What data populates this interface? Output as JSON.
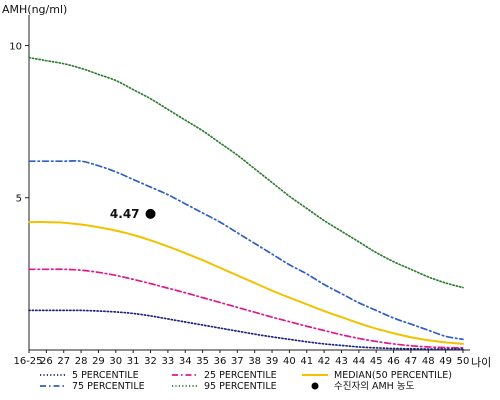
{
  "chart_data": {
    "type": "line",
    "ylabel": "AMH(ng/ml)",
    "xlabel": "나이",
    "ylim": [
      0,
      11
    ],
    "y_ticks": [
      {
        "value": 10,
        "label": "10"
      },
      {
        "value": 5,
        "label": "5"
      }
    ],
    "x": [
      "16-25",
      "26",
      "27",
      "28",
      "29",
      "30",
      "31",
      "32",
      "33",
      "34",
      "35",
      "36",
      "37",
      "38",
      "39",
      "40",
      "41",
      "42",
      "43",
      "44",
      "45",
      "46",
      "47",
      "48",
      "49",
      "50"
    ],
    "series": [
      {
        "name": "95 PERCENTILE",
        "color": "#2e7d32",
        "dash": "dotted",
        "values": [
          9.6,
          9.5,
          9.4,
          9.25,
          9.05,
          8.85,
          8.55,
          8.25,
          7.9,
          7.55,
          7.2,
          6.8,
          6.4,
          5.95,
          5.5,
          5.05,
          4.65,
          4.25,
          3.9,
          3.55,
          3.2,
          2.9,
          2.65,
          2.4,
          2.2,
          2.05
        ]
      },
      {
        "name": "75 PERCENTILE",
        "color": "#2f5fc4",
        "dash": "dashdot",
        "values": [
          6.2,
          6.2,
          6.2,
          6.2,
          6.05,
          5.85,
          5.6,
          5.35,
          5.1,
          4.8,
          4.5,
          4.2,
          3.85,
          3.5,
          3.15,
          2.8,
          2.5,
          2.15,
          1.85,
          1.55,
          1.3,
          1.05,
          0.85,
          0.65,
          0.45,
          0.35
        ]
      },
      {
        "name": "MEDIAN(50 PERCENTILE)",
        "color": "#f2c200",
        "dash": "solid",
        "values": [
          4.2,
          4.2,
          4.18,
          4.12,
          4.03,
          3.92,
          3.78,
          3.6,
          3.4,
          3.18,
          2.95,
          2.7,
          2.45,
          2.2,
          1.95,
          1.72,
          1.5,
          1.28,
          1.08,
          0.88,
          0.7,
          0.55,
          0.42,
          0.32,
          0.25,
          0.2
        ]
      },
      {
        "name": "25 PERCENTILE",
        "color": "#e0188c",
        "dash": "dashdot",
        "values": [
          2.65,
          2.65,
          2.65,
          2.62,
          2.55,
          2.45,
          2.32,
          2.18,
          2.03,
          1.88,
          1.72,
          1.56,
          1.4,
          1.24,
          1.08,
          0.93,
          0.78,
          0.64,
          0.5,
          0.38,
          0.28,
          0.2,
          0.14,
          0.1,
          0.08,
          0.07
        ]
      },
      {
        "name": "5 PERCENTILE",
        "color": "#1a237e",
        "dash": "dotted",
        "values": [
          1.3,
          1.3,
          1.3,
          1.3,
          1.28,
          1.25,
          1.2,
          1.12,
          1.02,
          0.92,
          0.82,
          0.72,
          0.62,
          0.52,
          0.43,
          0.35,
          0.27,
          0.2,
          0.15,
          0.1,
          0.07,
          0.05,
          0.04,
          0.03,
          0.03,
          0.03
        ]
      }
    ],
    "highlight_point": {
      "name": "수진자의 AMH 농도",
      "x": "32",
      "y": 4.47,
      "label": "4.47",
      "color": "#000000"
    },
    "legend": {
      "placement": "bottom",
      "entries": [
        {
          "label": "5 PERCENTILE",
          "series": "5 PERCENTILE"
        },
        {
          "label": "25 PERCENTILE",
          "series": "25 PERCENTILE"
        },
        {
          "label": "MEDIAN(50 PERCENTILE)",
          "series": "MEDIAN(50 PERCENTILE)"
        },
        {
          "label": "75 PERCENTILE",
          "series": "75 PERCENTILE"
        },
        {
          "label": "95 PERCENTILE",
          "series": "95 PERCENTILE"
        },
        {
          "label": "수진자의 AMH 농도",
          "series": "point"
        }
      ]
    },
    "grid": false
  }
}
